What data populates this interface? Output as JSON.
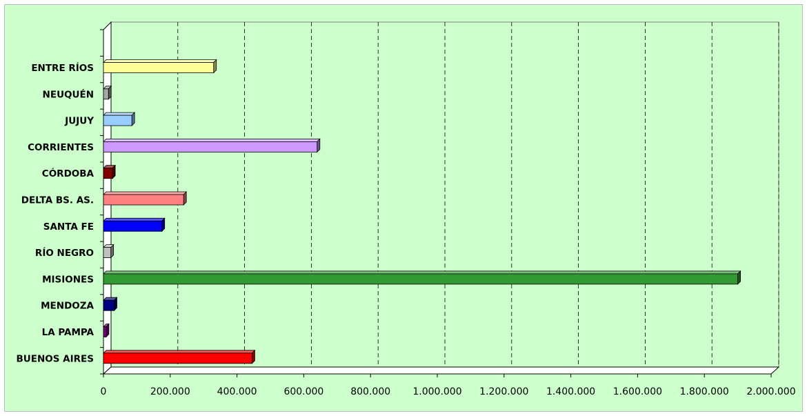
{
  "chart_data": {
    "type": "bar",
    "orientation": "horizontal",
    "style": "3d",
    "title": "",
    "xlabel": "",
    "ylabel": "",
    "xlim": [
      0,
      2000000
    ],
    "x_ticks": [
      0,
      200000,
      400000,
      600000,
      800000,
      1000000,
      1200000,
      1400000,
      1600000,
      1800000,
      2000000
    ],
    "x_tick_labels": [
      "0",
      "200.000",
      "400.000",
      "600.000",
      "800.000",
      "1.000.000",
      "1.200.000",
      "1.400.000",
      "1.600.000",
      "1.800.000",
      "2.000.000"
    ],
    "grid": "vertical dashed",
    "legend": "none",
    "background_color": "#ccffcc",
    "categories": [
      "BUENOS AIRES",
      "LA PAMPA",
      "MENDOZA",
      "MISIONES",
      "RÍO NEGRO",
      "SANTA FE",
      "DELTA BS. AS.",
      "CÓRDOBA",
      "CORRIENTES",
      "JUJUY",
      "NEUQUÉN",
      "ENTRE RÍOS"
    ],
    "values": [
      445000,
      8000,
      32000,
      1900000,
      22000,
      175000,
      240000,
      27000,
      640000,
      85000,
      15000,
      330000
    ],
    "colors": [
      "#ff0000",
      "#800080",
      "#000080",
      "#339933",
      "#c0c0c0",
      "#0000ff",
      "#ff8080",
      "#800000",
      "#cc99ff",
      "#99ccff",
      "#a6a6a6",
      "#ffff99"
    ]
  }
}
